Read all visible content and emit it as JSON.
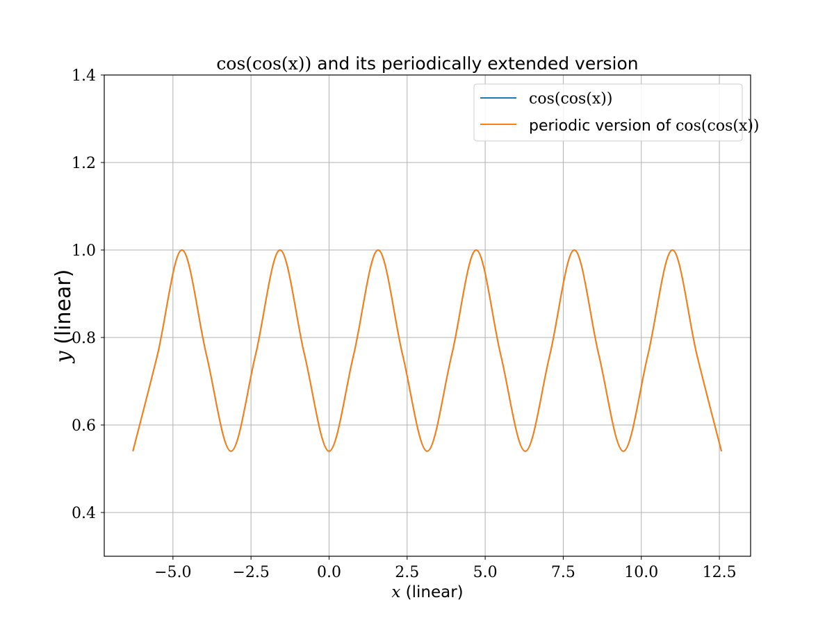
{
  "chart_data": {
    "type": "line",
    "title": {
      "math": "cos(cos(x))",
      "text": " and its periodically extended version"
    },
    "xlabel": {
      "math": "x",
      "text": " (linear)"
    },
    "ylabel": {
      "math": "y",
      "text": " (linear)"
    },
    "xlim": [
      -7.2,
      13.5
    ],
    "ylim": [
      0.3,
      1.4
    ],
    "xticks": [
      -5.0,
      -2.5,
      0.0,
      2.5,
      5.0,
      7.5,
      10.0,
      12.5
    ],
    "xtick_labels": [
      "−5.0",
      "−2.5",
      "0.0",
      "2.5",
      "5.0",
      "7.5",
      "10.0",
      "12.5"
    ],
    "yticks": [
      0.4,
      0.6,
      0.8,
      1.0,
      1.2,
      1.4
    ],
    "ytick_labels": [
      "0.4",
      "0.6",
      "0.8",
      "1.0",
      "1.2",
      "1.4"
    ],
    "grid": true,
    "legend_position": "top-right",
    "series": [
      {
        "name": "cos(cos(x))",
        "legend_math": "cos(cos(x))",
        "legend_text": "",
        "color": "#1f77b4",
        "x": [
          -6.283,
          -5.498,
          -4.712,
          -3.927,
          -3.142,
          -2.356,
          -1.571,
          -0.785,
          0.0,
          0.785,
          1.571,
          2.356,
          3.142,
          3.927,
          4.712,
          5.498,
          6.283,
          7.069,
          7.854,
          8.639,
          9.425,
          10.21,
          10.996,
          11.781,
          12.566
        ],
        "y": [
          0.54,
          0.76,
          1.0,
          0.76,
          0.54,
          0.76,
          1.0,
          0.76,
          0.54,
          0.76,
          1.0,
          0.76,
          0.54,
          0.76,
          1.0,
          0.76,
          0.54,
          0.76,
          1.0,
          0.76,
          0.54,
          0.76,
          1.0,
          0.76,
          0.54
        ]
      },
      {
        "name": "periodic version of cos(cos(x))",
        "legend_math": "cos(cos(x))",
        "legend_text": "periodic version of ",
        "color": "#ff7f0e",
        "x": [
          -6.283,
          -5.498,
          -4.712,
          -3.927,
          -3.142,
          -2.356,
          -1.571,
          -0.785,
          0.0,
          0.785,
          1.571,
          2.356,
          3.142,
          3.927,
          4.712,
          5.498,
          6.283,
          7.069,
          7.854,
          8.639,
          9.425,
          10.21,
          10.996,
          11.781,
          12.566
        ],
        "y": [
          0.54,
          0.76,
          1.0,
          0.76,
          0.54,
          0.76,
          1.0,
          0.76,
          0.54,
          0.76,
          1.0,
          0.76,
          0.54,
          0.76,
          1.0,
          0.76,
          0.54,
          0.76,
          1.0,
          0.76,
          0.54,
          0.76,
          1.0,
          0.76,
          0.54
        ]
      }
    ]
  }
}
